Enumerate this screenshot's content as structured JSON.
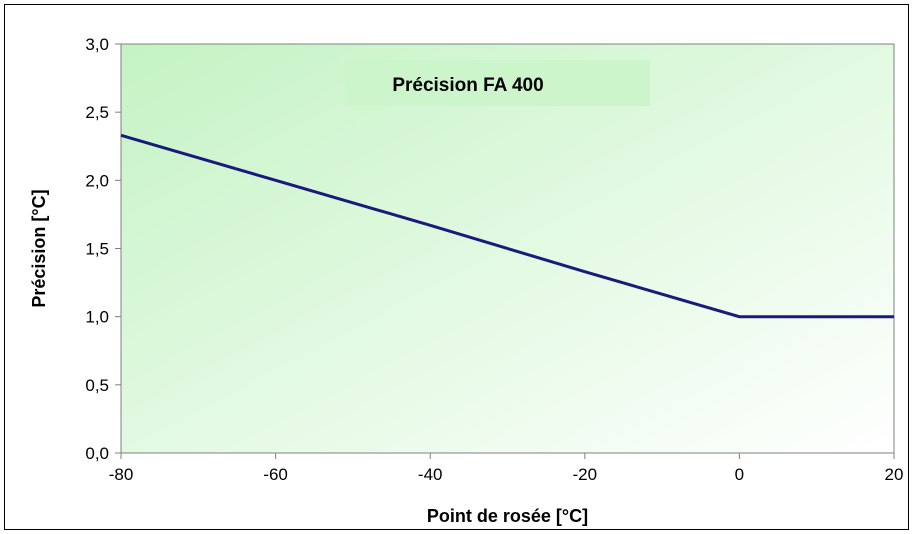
{
  "chart_data": {
    "type": "line",
    "title": "Précision FA 400",
    "xlabel": "Point de rosée [°C]",
    "ylabel": "Précision [°C]",
    "xlim": [
      -80,
      20
    ],
    "ylim": [
      0,
      3
    ],
    "x_ticks": [
      "-80",
      "-60",
      "-40",
      "-20",
      "0",
      "20"
    ],
    "y_ticks": [
      "0,0",
      "0,5",
      "1,0",
      "1,5",
      "2,0",
      "2,5",
      "3,0"
    ],
    "grid": false,
    "legend": "none",
    "series": [
      {
        "x": [
          -80,
          -60,
          -40,
          -20,
          0,
          20
        ],
        "y": [
          2.33,
          2.0,
          1.67,
          1.33,
          1.0,
          1.0
        ]
      }
    ],
    "colors": {
      "line": "#1a1a7a",
      "plot_bg_start": "#c8f5c8",
      "plot_bg_end": "#ffffff",
      "title_bg": "#ccf5cc",
      "axis": "#808080"
    }
  }
}
